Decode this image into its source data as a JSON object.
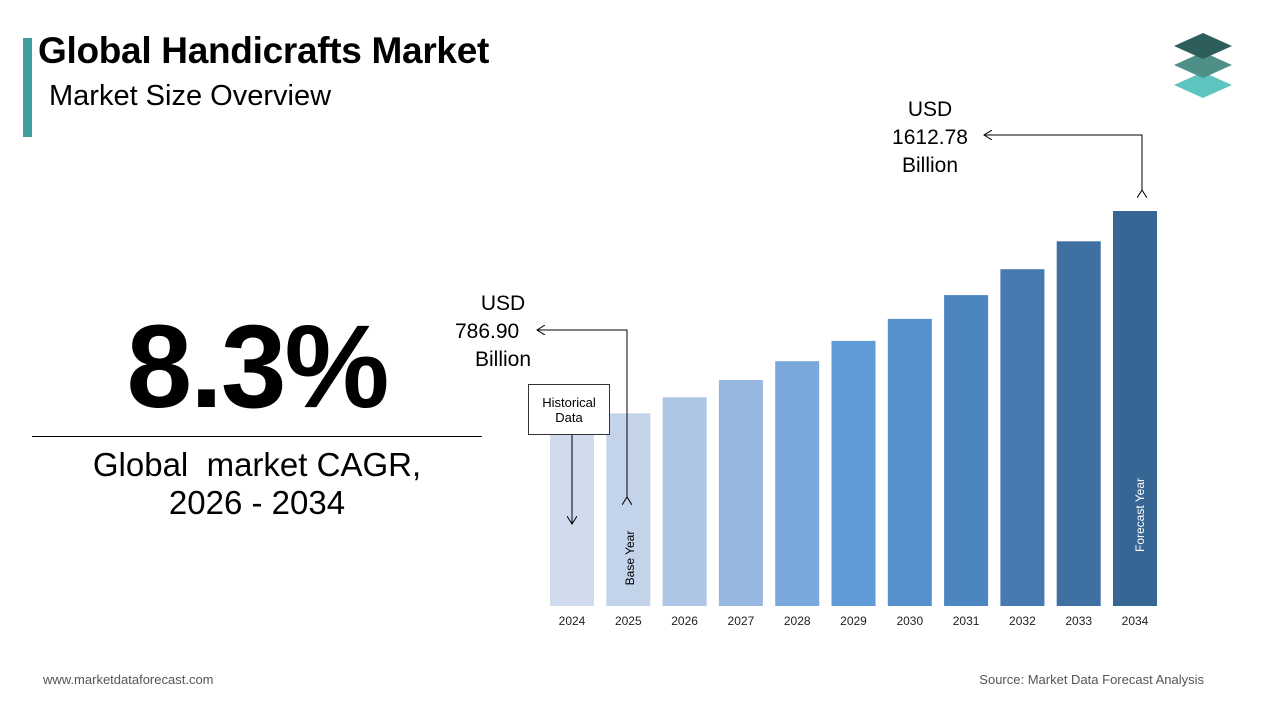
{
  "header": {
    "title": "Global Handicrafts Market",
    "subtitle": "Market Size Overview",
    "accent_color": "#3e9e9e"
  },
  "logo": {
    "icon": "stacked-layers-icon",
    "colors": [
      "#2e5e5a",
      "#4f8f87",
      "#5ec4c0"
    ]
  },
  "cagr": {
    "value": "8.3%",
    "label_line1": "Global  market CAGR,",
    "label_line2": "2026 - 2034"
  },
  "annotations": {
    "base_value": {
      "line1": "USD",
      "line2": "786.90",
      "line3": "Billion"
    },
    "forecast_value": {
      "line1": "USD",
      "line2": "1612.78",
      "line3": "Billion"
    },
    "historical_label_line1": "Historical",
    "historical_label_line2": "Data",
    "base_year_label": "Base Year",
    "forecast_year_label": "Forecast Year"
  },
  "chart_data": {
    "type": "bar",
    "categories": [
      "2024",
      "2025",
      "2026",
      "2027",
      "2028",
      "2029",
      "2030",
      "2031",
      "2032",
      "2033",
      "2034"
    ],
    "values": [
      726.6,
      786.9,
      852.2,
      922.9,
      999.5,
      1082.5,
      1172.3,
      1269.6,
      1375.0,
      1489.1,
      1612.78
    ],
    "colors": [
      "#d0dcee",
      "#c2d3ea",
      "#adc6e6",
      "#96b8e0",
      "#7aa8db",
      "#5f9bd6",
      "#5590cc",
      "#4c85bf",
      "#4579b0",
      "#3f70a2",
      "#386694"
    ],
    "title": "",
    "xlabel": "",
    "ylabel": "",
    "ylim": [
      0,
      1612.78
    ]
  },
  "footer": {
    "website": "www.marketdataforecast.com",
    "source": "Source: Market Data Forecast Analysis"
  }
}
